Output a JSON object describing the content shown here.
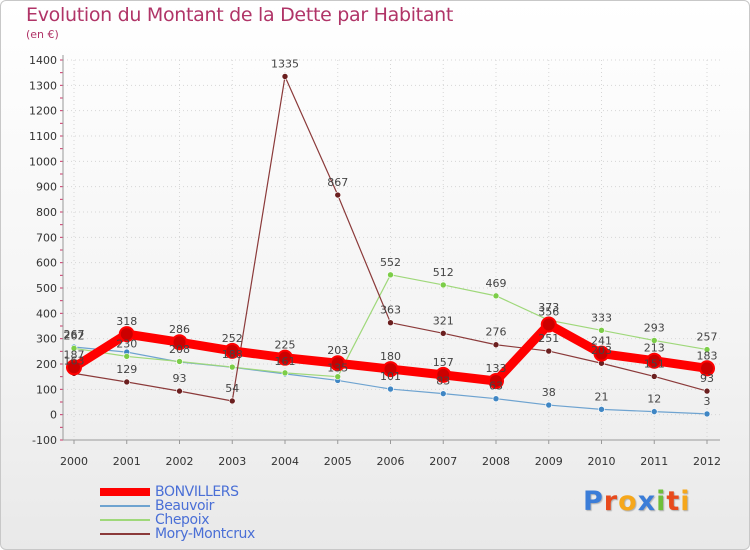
{
  "header": {
    "title": "Evolution du Montant de la Dette par Habitant",
    "subtitle": "(en €)"
  },
  "logo": {
    "text": "Proxiti",
    "letters": [
      "P",
      "r",
      "o",
      "x",
      "i",
      "t",
      "i"
    ],
    "colors": [
      "#3b7dd8",
      "#e84a1c",
      "#f6a71b",
      "#3b7dd8",
      "#6fbf3a",
      "#e84a1c",
      "#f6a71b"
    ]
  },
  "chart_data": {
    "type": "line",
    "title": "Evolution du Montant de la Dette par Habitant",
    "ylabel": "(en €)",
    "xlabel": "",
    "ylim": [
      -100,
      1400
    ],
    "yticks": [
      "-100",
      "0",
      "100",
      "200",
      "300",
      "400",
      "500",
      "600",
      "700",
      "800",
      "900",
      "1000",
      "1100",
      "1200",
      "1300",
      "1400"
    ],
    "categories": [
      "2000",
      "2001",
      "2002",
      "2003",
      "2004",
      "2005",
      "2006",
      "2007",
      "2008",
      "2009",
      "2010",
      "2011",
      "2012"
    ],
    "series": [
      {
        "name": "Beauvoir",
        "color": "#6ea3d0",
        "dot": "#3f86c4",
        "width": 1.2,
        "values": [
          267,
          247,
          208,
          187,
          161,
          135,
          101,
          83,
          63,
          38,
          21,
          12,
          3
        ],
        "labels": [
          "267",
          "",
          "208",
          "",
          "161",
          "135",
          "101",
          "83",
          "63",
          "38",
          "21",
          "12",
          "3"
        ]
      },
      {
        "name": "Chepoix",
        "color": "#9fd87a",
        "dot": "#7ccd48",
        "width": 1.2,
        "values": [
          262,
          230,
          210,
          188,
          165,
          150,
          552,
          512,
          469,
          373,
          333,
          293,
          257
        ],
        "labels": [
          "262",
          "230",
          "",
          "188",
          "",
          "",
          "552",
          "512",
          "469",
          "373",
          "333",
          "293",
          "257"
        ]
      },
      {
        "name": "Mory-Montcrux",
        "color": "#8b3a3a",
        "dot": "#6b1f1f",
        "width": 1.2,
        "values": [
          163,
          129,
          93,
          54,
          1335,
          867,
          363,
          321,
          276,
          251,
          203,
          151,
          93
        ],
        "labels": [
          "163",
          "129",
          "93",
          "54",
          "1335",
          "867",
          "363",
          "321",
          "276",
          "251",
          "203",
          "151",
          "93"
        ]
      },
      {
        "name": "BONVILLERS",
        "color": "#ff0000",
        "dot": "#cc0000",
        "width": 9,
        "values": [
          187,
          318,
          286,
          252,
          225,
          203,
          180,
          157,
          133,
          356,
          241,
          213,
          183
        ],
        "labels": [
          "187",
          "318",
          "286",
          "252",
          "225",
          "203",
          "180",
          "157",
          "133",
          "356",
          "241",
          "213",
          "183"
        ]
      }
    ],
    "legend": [
      "BONVILLERS",
      "Beauvoir",
      "Chepoix",
      "Mory-Montcrux"
    ],
    "grid": true
  }
}
